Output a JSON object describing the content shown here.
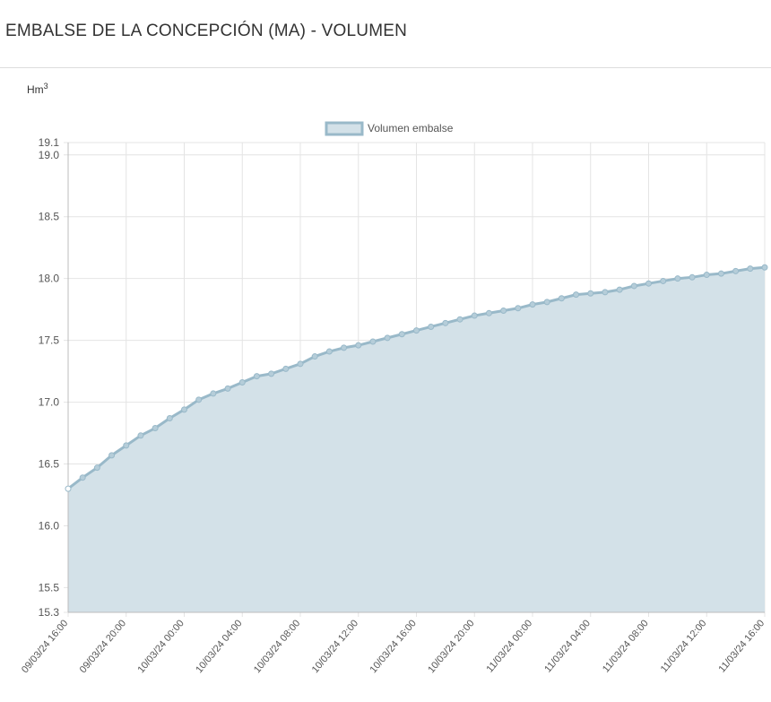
{
  "page": {
    "title": "EMBALSE DE LA CONCEPCIÓN (MA) - VOLUMEN"
  },
  "colors": {
    "line": "#99b9c9",
    "fill": "#d3e1e8",
    "point_fill": "#b5cdd9",
    "grid": "#e4e4e4",
    "axis": "#bcbcbc"
  },
  "chart_data": {
    "type": "area",
    "unit_base": "Hm",
    "unit_exp": "3",
    "legend_position": "top-center",
    "grid": true,
    "ylim": [
      15.3,
      19.1
    ],
    "y_ticks": [
      {
        "value": 15.3,
        "label": "15.3"
      },
      {
        "value": 15.5,
        "label": "15.5"
      },
      {
        "value": 16.0,
        "label": "16.0"
      },
      {
        "value": 16.5,
        "label": "16.5"
      },
      {
        "value": 17.0,
        "label": "17.0"
      },
      {
        "value": 17.5,
        "label": "17.5"
      },
      {
        "value": 18.0,
        "label": "18.0"
      },
      {
        "value": 18.5,
        "label": "18.5"
      },
      {
        "value": 19.0,
        "label": "19.0"
      },
      {
        "value": 19.1,
        "label": "19.1"
      }
    ],
    "x_ticks": [
      {
        "index": 0,
        "label": "09/03/24 16:00"
      },
      {
        "index": 4,
        "label": "09/03/24 20:00"
      },
      {
        "index": 8,
        "label": "10/03/24 00:00"
      },
      {
        "index": 12,
        "label": "10/03/24 04:00"
      },
      {
        "index": 16,
        "label": "10/03/24 08:00"
      },
      {
        "index": 20,
        "label": "10/03/24 12:00"
      },
      {
        "index": 24,
        "label": "10/03/24 16:00"
      },
      {
        "index": 28,
        "label": "10/03/24 20:00"
      },
      {
        "index": 32,
        "label": "11/03/24 00:00"
      },
      {
        "index": 36,
        "label": "11/03/24 04:00"
      },
      {
        "index": 40,
        "label": "11/03/24 08:00"
      },
      {
        "index": 44,
        "label": "11/03/24 12:00"
      },
      {
        "index": 48,
        "label": "11/03/24 16:00"
      }
    ],
    "series": [
      {
        "name": "Volumen embalse",
        "values": [
          16.3,
          16.39,
          16.47,
          16.57,
          16.65,
          16.73,
          16.79,
          16.87,
          16.94,
          17.02,
          17.07,
          17.11,
          17.16,
          17.21,
          17.23,
          17.27,
          17.31,
          17.37,
          17.41,
          17.44,
          17.46,
          17.49,
          17.52,
          17.55,
          17.58,
          17.61,
          17.64,
          17.67,
          17.7,
          17.72,
          17.74,
          17.76,
          17.79,
          17.81,
          17.84,
          17.87,
          17.88,
          17.89,
          17.91,
          17.94,
          17.96,
          17.98,
          18.0,
          18.01,
          18.03,
          18.04,
          18.06,
          18.08,
          18.09
        ]
      }
    ]
  }
}
